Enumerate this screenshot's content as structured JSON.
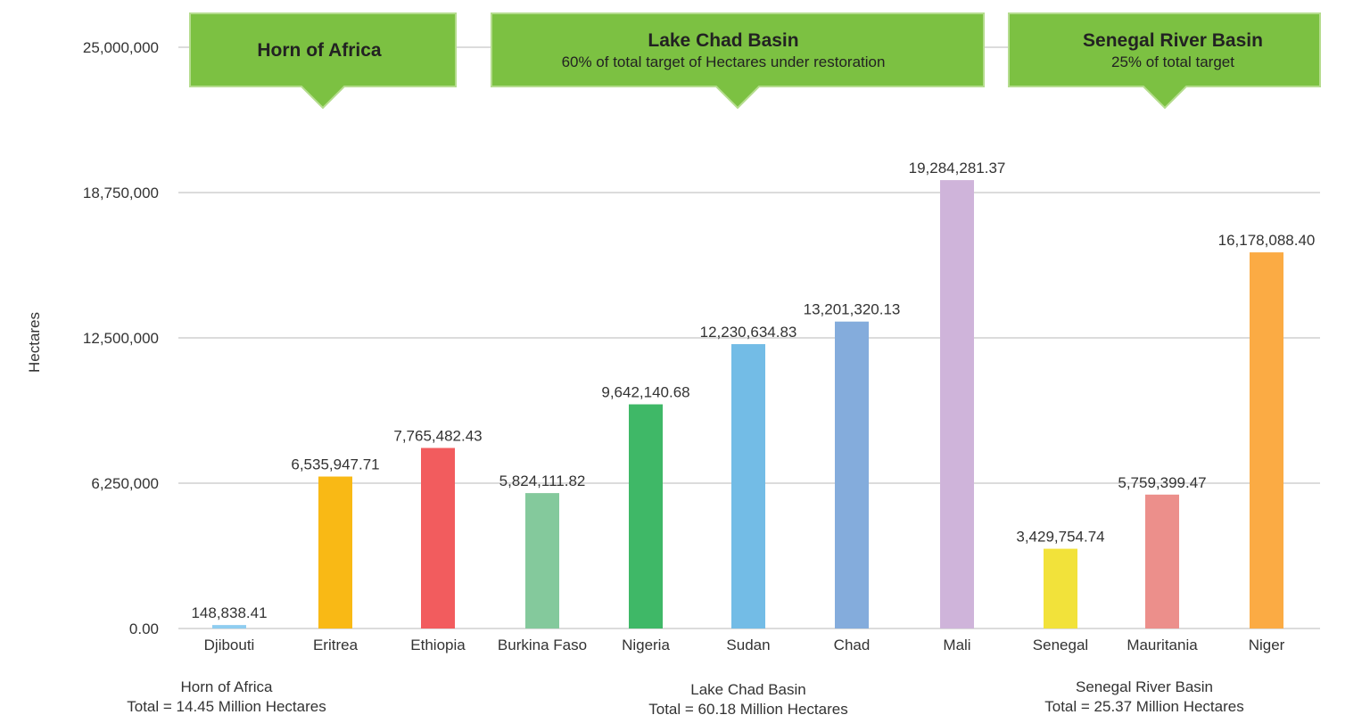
{
  "chart_data": {
    "type": "bar",
    "ylabel": "Hectares",
    "ylim": [
      0,
      25000000
    ],
    "yticks": [
      0,
      6250000,
      12500000,
      18750000,
      25000000
    ],
    "ytick_labels": [
      "0.00",
      "6,250,000",
      "12,500,000",
      "18,750,000",
      "25,000,000"
    ],
    "grid": true,
    "categories": [
      "Djibouti",
      "Eritrea",
      "Ethiopia",
      "Burkina Faso",
      "Nigeria",
      "Sudan",
      "Chad",
      "Mali",
      "Senegal",
      "Mauritania",
      "Niger"
    ],
    "values": [
      148838.41,
      6535947.71,
      7765482.43,
      5824111.82,
      9642140.68,
      12230634.83,
      13201320.13,
      19284281.37,
      3429754.74,
      5759399.47,
      16178088.4
    ],
    "value_labels": [
      "148,838.41",
      "6,535,947.71",
      "7,765,482.43",
      "5,824,111.82",
      "9,642,140.68",
      "12,230,634.83",
      "13,201,320.13",
      "19,284,281.37",
      "3,429,754.74",
      "5,759,399.47",
      "16,178,088.40"
    ],
    "colors": [
      "#8fcdf0",
      "#f9b915",
      "#f25c5e",
      "#84c99c",
      "#3fb867",
      "#73bce6",
      "#84acdc",
      "#cfb4da",
      "#f2e23a",
      "#ec8f8b",
      "#fbab44"
    ],
    "callouts": [
      {
        "title": "Horn of Africa",
        "subtitle": ""
      },
      {
        "title": "Lake Chad Basin",
        "subtitle": "60% of total target of Hectares under restoration"
      },
      {
        "title": "Senegal River Basin",
        "subtitle": "25% of total target"
      }
    ],
    "callout_color": "#7cc142",
    "group_totals": [
      {
        "name": "Horn of Africa",
        "total": "Total = 14.45 Million Hectares"
      },
      {
        "name": "Lake Chad Basin",
        "total": "Total = 60.18 Million Hectares"
      },
      {
        "name": "Senegal River Basin",
        "total": "Total = 25.37 Million Hectares"
      }
    ]
  }
}
